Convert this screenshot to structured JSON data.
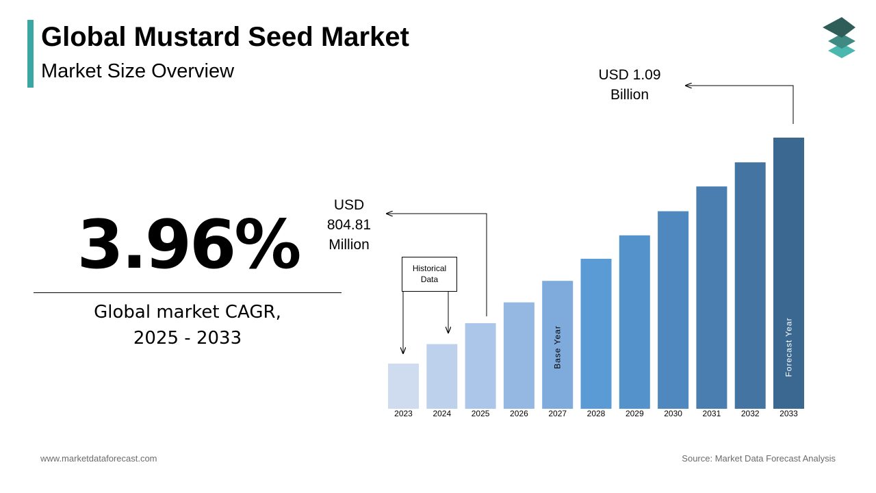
{
  "header": {
    "title": "Global Mustard Seed Market",
    "subtitle": "Market Size Overview"
  },
  "logo": {
    "icon": "stacked-layers-icon",
    "colors": [
      "#2f5e58",
      "#3f8a82",
      "#4bb8b0"
    ]
  },
  "cagr": {
    "value": "3.96%",
    "label_line1": "Global market CAGR,",
    "label_line2": "2025 - 2033"
  },
  "callouts": {
    "start": {
      "line1": "USD",
      "line2": "804.81",
      "line3": "Million"
    },
    "end": {
      "line1": "USD 1.09",
      "line2": "Billion"
    },
    "historical_line1": "Historical",
    "historical_line2": "Data"
  },
  "chart_data": {
    "type": "bar",
    "categories": [
      "2023",
      "2024",
      "2025",
      "2026",
      "2027",
      "2028",
      "2029",
      "2030",
      "2031",
      "2032",
      "2033"
    ],
    "values": [
      0.743,
      0.773,
      0.805,
      0.837,
      0.87,
      0.904,
      0.94,
      0.977,
      1.015,
      1.052,
      1.09
    ],
    "value_unit": "USD Billion",
    "colors": [
      "#cfdcf0",
      "#bdd1ec",
      "#abc6e8",
      "#94b8e2",
      "#7eaadc",
      "#5b9bd5",
      "#5492cc",
      "#4f88be",
      "#4a7eb0",
      "#4474a1",
      "#3a6891"
    ],
    "bar_labels": {
      "2027": "Base Year",
      "2033": "Forecast Year"
    },
    "highlighted": {
      "2025": "USD 804.81 Million",
      "2033": "USD 1.09 Billion"
    },
    "historical_years": [
      "2023",
      "2024"
    ]
  },
  "footer": {
    "website": "www.marketdataforecast.com",
    "source": "Source: Market Data Forecast Analysis"
  }
}
